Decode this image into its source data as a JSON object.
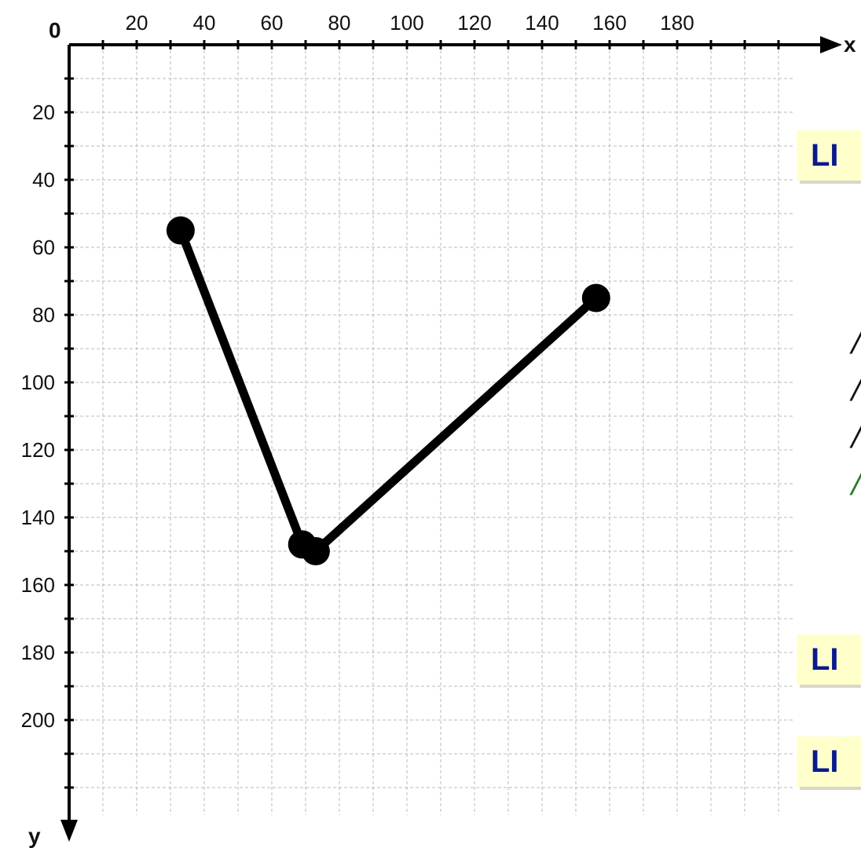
{
  "axes": {
    "origin_label": "0",
    "x_name": "x",
    "y_name": "y",
    "x_ticks": [
      20,
      40,
      60,
      80,
      100,
      120,
      140,
      160,
      180
    ],
    "y_ticks": [
      20,
      40,
      60,
      80,
      100,
      120,
      140,
      160,
      180,
      200
    ],
    "x_range": [
      0,
      200
    ],
    "y_range": [
      0,
      220
    ],
    "grid": true,
    "grid_style": "dashed",
    "y_direction": "down"
  },
  "polyline": {
    "color": "#000000",
    "points": [
      {
        "x": 33,
        "y": 55
      },
      {
        "x": 69,
        "y": 148
      },
      {
        "x": 73,
        "y": 150
      },
      {
        "x": 156,
        "y": 75
      }
    ]
  },
  "callouts": {
    "top": "LI",
    "middle": "LI",
    "bottom": "LI"
  },
  "side_text_visible_lines": [
    "",
    "",
    "",
    "",
    ""
  ],
  "colors": {
    "callout_bg": "#ffffcc",
    "callout_text": "#0a1a8c",
    "glyph_green": "#2a7a2a"
  }
}
